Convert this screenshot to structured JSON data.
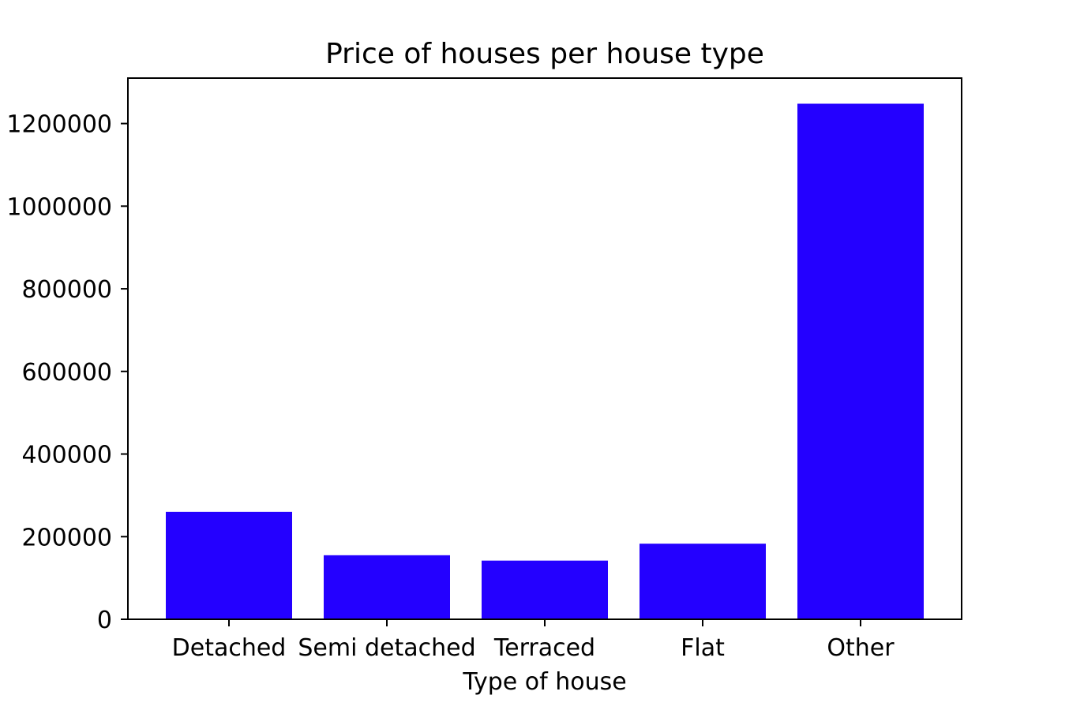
{
  "chart_data": {
    "type": "bar",
    "title": "Price of houses per house type",
    "xlabel": "Type of house",
    "ylabel": "",
    "categories": [
      "Detached",
      "Semi detached",
      "Terraced",
      "Flat",
      "Other"
    ],
    "values": [
      260000,
      155000,
      142000,
      183000,
      1248000
    ],
    "ylim": [
      0,
      1310000
    ],
    "yticks": [
      0,
      200000,
      400000,
      600000,
      800000,
      1000000,
      1200000
    ],
    "ytick_labels": [
      "0",
      "200000",
      "400000",
      "600000",
      "800000",
      "1000000",
      "1200000"
    ],
    "bar_color": "#2400ff",
    "grid": false,
    "legend": "none"
  }
}
